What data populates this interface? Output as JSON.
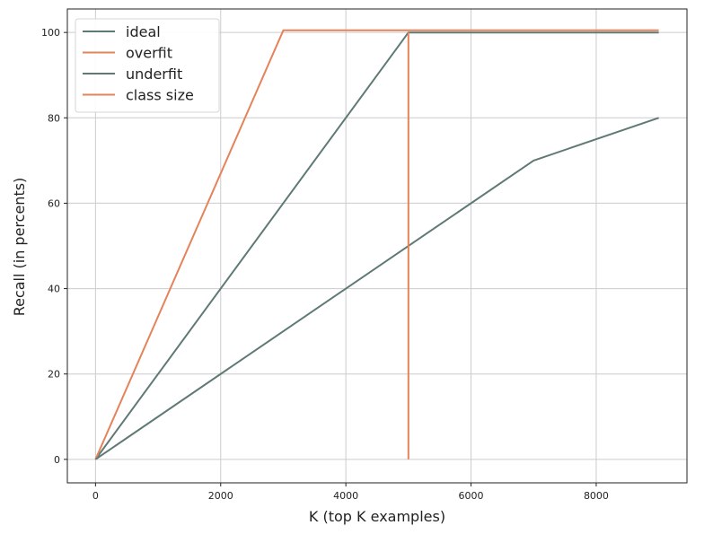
{
  "chart_data": {
    "type": "line",
    "title": "",
    "xlabel": "K (top K examples)",
    "ylabel": "Recall (in percents)",
    "xlim": [
      -450,
      9450
    ],
    "ylim": [
      -5.5,
      105.5
    ],
    "xticks": [
      0,
      2000,
      4000,
      6000,
      8000
    ],
    "yticks": [
      0,
      20,
      40,
      60,
      80,
      100
    ],
    "grid": true,
    "legend_position": "top-left",
    "series": [
      {
        "name": "ideal",
        "color": "#5f7a76",
        "x": [
          0,
          5000,
          9000
        ],
        "y": [
          0,
          100,
          100
        ]
      },
      {
        "name": "overfit",
        "color": "#e5835a",
        "x": [
          0,
          3000,
          9000
        ],
        "y": [
          0,
          100.5,
          100.5
        ]
      },
      {
        "name": "underfit",
        "color": "#5f7a76",
        "x": [
          0,
          7000,
          9000
        ],
        "y": [
          0,
          70,
          80
        ]
      },
      {
        "name": "class size",
        "color": "#e5835a",
        "x": [
          5000,
          5000
        ],
        "y": [
          0,
          100
        ]
      }
    ]
  }
}
